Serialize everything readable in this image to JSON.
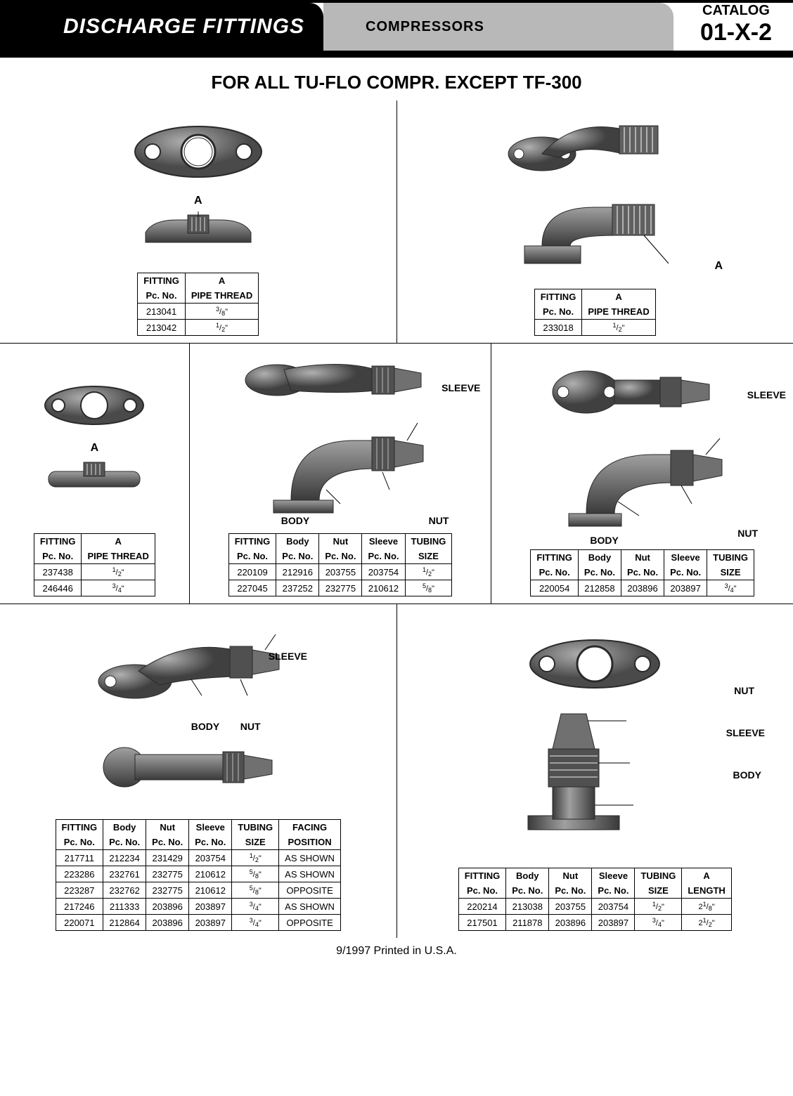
{
  "header": {
    "title": "DISCHARGE FITTINGS",
    "middle": "COMPRESSORS",
    "catalog_label": "CATALOG",
    "catalog_number": "01-X-2"
  },
  "page_title": "FOR ALL TU-FLO COMPR. EXCEPT TF-300",
  "labels": {
    "A": "A",
    "sleeve": "SLEEVE",
    "nut": "NUT",
    "body": "BODY"
  },
  "table1": {
    "headers1": [
      "FITTING",
      "A"
    ],
    "headers2": [
      "Pc. No.",
      "PIPE THREAD"
    ],
    "rows": [
      [
        "213041",
        "3/8\""
      ],
      [
        "213042",
        "1/2\""
      ]
    ]
  },
  "table2": {
    "headers1": [
      "FITTING",
      "A"
    ],
    "headers2": [
      "Pc. No.",
      "PIPE THREAD"
    ],
    "rows": [
      [
        "233018",
        "1/2\""
      ]
    ]
  },
  "table3": {
    "headers1": [
      "FITTING",
      "A"
    ],
    "headers2": [
      "Pc. No.",
      "PIPE THREAD"
    ],
    "rows": [
      [
        "237438",
        "1/2\""
      ],
      [
        "246446",
        "3/4\""
      ]
    ]
  },
  "table4": {
    "headers1": [
      "FITTING",
      "Body",
      "Nut",
      "Sleeve",
      "TUBING"
    ],
    "headers2": [
      "Pc. No.",
      "Pc. No.",
      "Pc. No.",
      "Pc. No.",
      "SIZE"
    ],
    "rows": [
      [
        "220109",
        "212916",
        "203755",
        "203754",
        "1/2\""
      ],
      [
        "227045",
        "237252",
        "232775",
        "210612",
        "5/8\""
      ]
    ]
  },
  "table5": {
    "headers1": [
      "FITTING",
      "Body",
      "Nut",
      "Sleeve",
      "TUBING"
    ],
    "headers2": [
      "Pc. No.",
      "Pc. No.",
      "Pc. No.",
      "Pc. No.",
      "SIZE"
    ],
    "rows": [
      [
        "220054",
        "212858",
        "203896",
        "203897",
        "3/4\""
      ]
    ]
  },
  "table6": {
    "headers1": [
      "FITTING",
      "Body",
      "Nut",
      "Sleeve",
      "TUBING",
      "FACING"
    ],
    "headers2": [
      "Pc. No.",
      "Pc. No.",
      "Pc. No.",
      "Pc. No.",
      "SIZE",
      "POSITION"
    ],
    "rows": [
      [
        "217711",
        "212234",
        "231429",
        "203754",
        "1/2\"",
        "AS SHOWN"
      ],
      [
        "223286",
        "232761",
        "232775",
        "210612",
        "5/8\"",
        "AS SHOWN"
      ],
      [
        "223287",
        "232762",
        "232775",
        "210612",
        "5/8\"",
        "OPPOSITE"
      ],
      [
        "217246",
        "211333",
        "203896",
        "203897",
        "3/4\"",
        "AS SHOWN"
      ],
      [
        "220071",
        "212864",
        "203896",
        "203897",
        "3/4\"",
        "OPPOSITE"
      ]
    ]
  },
  "table7": {
    "headers1": [
      "FITTING",
      "Body",
      "Nut",
      "Sleeve",
      "TUBING",
      "A"
    ],
    "headers2": [
      "Pc. No.",
      "Pc. No.",
      "Pc. No.",
      "Pc. No.",
      "SIZE",
      "LENGTH"
    ],
    "rows": [
      [
        "220214",
        "213038",
        "203755",
        "203754",
        "1/2\"",
        "2 1/8\""
      ],
      [
        "217501",
        "211878",
        "203896",
        "203897",
        "3/4\"",
        "2 1/2\""
      ]
    ]
  },
  "footer": "9/1997 Printed in U.S.A.",
  "colors": {
    "metal_dark": "#4a4a4a",
    "metal_mid": "#707070",
    "metal_light": "#909090",
    "metal_hilite": "#b0b0b0"
  }
}
